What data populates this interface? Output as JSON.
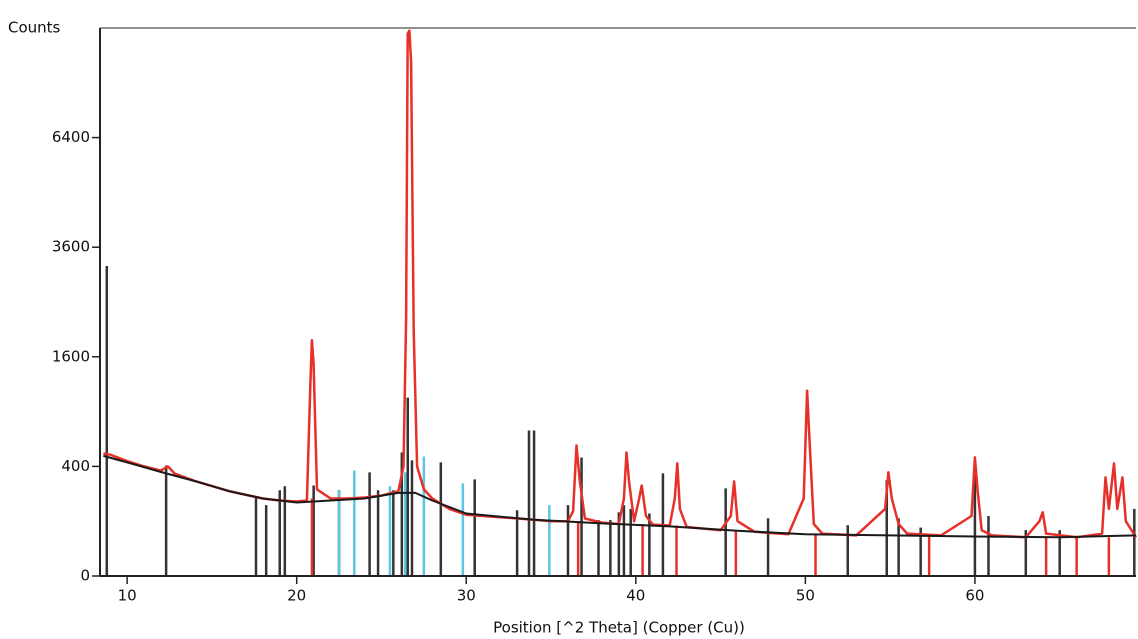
{
  "chart_data": {
    "type": "line",
    "ylabel": "Counts",
    "xlabel": "Position [^2 Theta] (Copper (Cu))",
    "y_scale": "sqrt",
    "xlim": [
      8.4,
      69.5
    ],
    "xticks": [
      10,
      20,
      30,
      40,
      50,
      60
    ],
    "ylim": [
      0,
      10000
    ],
    "yticks": [
      0,
      400,
      1600,
      3600,
      6400
    ],
    "series": [
      {
        "color": "#e8302a",
        "x": [
          8.6,
          9,
          10,
          11,
          12,
          12.4,
          12.8,
          14,
          16,
          18,
          19,
          20,
          20.6,
          20.8,
          20.9,
          21.0,
          21.2,
          22,
          23,
          24,
          25,
          26,
          26.3,
          26.45,
          26.55,
          26.65,
          26.75,
          26.9,
          27.1,
          27.5,
          28,
          29,
          30,
          32,
          34,
          35,
          36,
          36.3,
          36.5,
          36.7,
          37,
          38,
          39,
          39.3,
          39.45,
          39.6,
          39.9,
          40.2,
          40.35,
          40.6,
          41,
          42,
          42.3,
          42.45,
          42.6,
          43,
          45,
          45.6,
          45.8,
          46,
          47,
          49,
          49.9,
          50.1,
          50.25,
          50.5,
          51,
          53,
          54.7,
          54.9,
          55.1,
          55.5,
          56,
          58,
          59.8,
          60,
          60.15,
          60.4,
          61,
          63,
          63.8,
          64,
          64.2,
          66,
          67.5,
          67.7,
          67.9,
          68.2,
          68.4,
          68.7,
          68.9,
          69.5
        ],
        "values": [
          500,
          490,
          440,
          400,
          370,
          400,
          350,
          300,
          240,
          200,
          190,
          185,
          190,
          1200,
          1850,
          1500,
          250,
          200,
          200,
          205,
          215,
          240,
          400,
          2200,
          9800,
          9900,
          8800,
          2000,
          400,
          250,
          200,
          150,
          125,
          115,
          105,
          100,
          100,
          140,
          567,
          300,
          110,
          95,
          90,
          200,
          508,
          300,
          100,
          200,
          273,
          120,
          88,
          85,
          200,
          422,
          150,
          80,
          70,
          120,
          298,
          100,
          65,
          58,
          200,
          1143,
          600,
          90,
          60,
          55,
          150,
          358,
          200,
          90,
          60,
          55,
          120,
          468,
          250,
          70,
          55,
          50,
          100,
          135,
          60,
          50,
          60,
          324,
          150,
          422,
          150,
          324,
          100,
          50
        ]
      },
      {
        "color": "#1a1a1a",
        "x": [
          8.6,
          10,
          12,
          14,
          16,
          18,
          20,
          22,
          24,
          26,
          27,
          28,
          30,
          34,
          38,
          42,
          46,
          50,
          55,
          60,
          65,
          69.5
        ],
        "values": [
          480,
          430,
          360,
          300,
          240,
          200,
          180,
          190,
          200,
          230,
          230,
          190,
          130,
          105,
          92,
          82,
          68,
          58,
          55,
          52,
          50,
          55
        ]
      }
    ],
    "sticks": [
      {
        "color": "#333333",
        "x": [
          8.8,
          12.3,
          17.6,
          18.2,
          19,
          19.3,
          21,
          22.5,
          24.3,
          24.8,
          25.7,
          26.2,
          26.55,
          26.8,
          28.5,
          30.5,
          33,
          33.7,
          34,
          36,
          36.8,
          37.8,
          38.5,
          39,
          39.3,
          39.7,
          40.8,
          41.6,
          45.3,
          47.8,
          52.5,
          54.8,
          55.5,
          56.8,
          60,
          60.8,
          63,
          65,
          69.4
        ],
        "values": [
          3200,
          407,
          206,
          167,
          245,
          268,
          273,
          245,
          358,
          245,
          245,
          508,
          1060,
          445,
          430,
          311,
          144,
          705,
          705,
          167,
          468,
          104,
          104,
          135,
          167,
          150,
          130,
          351,
          256,
          111,
          86,
          305,
          111,
          78,
          358,
          120,
          70,
          70,
          150
        ]
      },
      {
        "color": "#5bc8e0",
        "x": [
          22.5,
          23.4,
          25.5,
          26.4,
          27.5,
          29.8,
          34.9
        ],
        "values": [
          245,
          371,
          268,
          358,
          476,
          286,
          167
        ]
      },
      {
        "color": "#e8302a",
        "x": [
          20.9,
          36.6,
          40.4,
          42.4,
          45.9,
          50.6,
          57.3,
          64.2,
          66,
          67.9
        ],
        "values": [
          200,
          100,
          90,
          85,
          68,
          58,
          55,
          50,
          50,
          50
        ]
      }
    ]
  }
}
